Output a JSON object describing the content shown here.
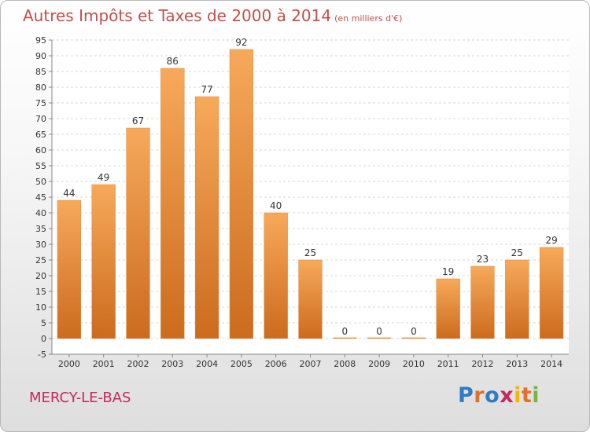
{
  "header": {
    "title": "Autres Impôts et Taxes de 2000 à 2014",
    "unit": "(en milliers d'€)"
  },
  "footer": {
    "commune": "MERCY-LE-BAS",
    "logo": "Proxiti"
  },
  "colors": {
    "title": "#c0504d",
    "commune": "#c8275d",
    "bar_light": "#f7a95a",
    "bar_dark": "#cc6b1e",
    "logo_letters": [
      "#2e7cc4",
      "#e0702a",
      "#2e7cc4",
      "#c8275d",
      "#f2b705",
      "#e0702a",
      "#7cb342"
    ]
  },
  "chart_data": {
    "type": "bar",
    "title": "Autres Impôts et Taxes de 2000 à 2014",
    "xlabel": "",
    "ylabel": "",
    "categories": [
      "2000",
      "2001",
      "2002",
      "2003",
      "2004",
      "2005",
      "2006",
      "2007",
      "2008",
      "2009",
      "2010",
      "2011",
      "2012",
      "2013",
      "2014"
    ],
    "values": [
      44,
      49,
      67,
      86,
      77,
      92,
      40,
      25,
      0,
      0,
      0,
      19,
      23,
      25,
      29
    ],
    "ylim": [
      -5,
      95
    ],
    "yticks": [
      -5,
      0,
      5,
      10,
      15,
      20,
      25,
      30,
      35,
      40,
      45,
      50,
      55,
      60,
      65,
      70,
      75,
      80,
      85,
      90,
      95
    ],
    "grid": true,
    "legend": "none"
  }
}
